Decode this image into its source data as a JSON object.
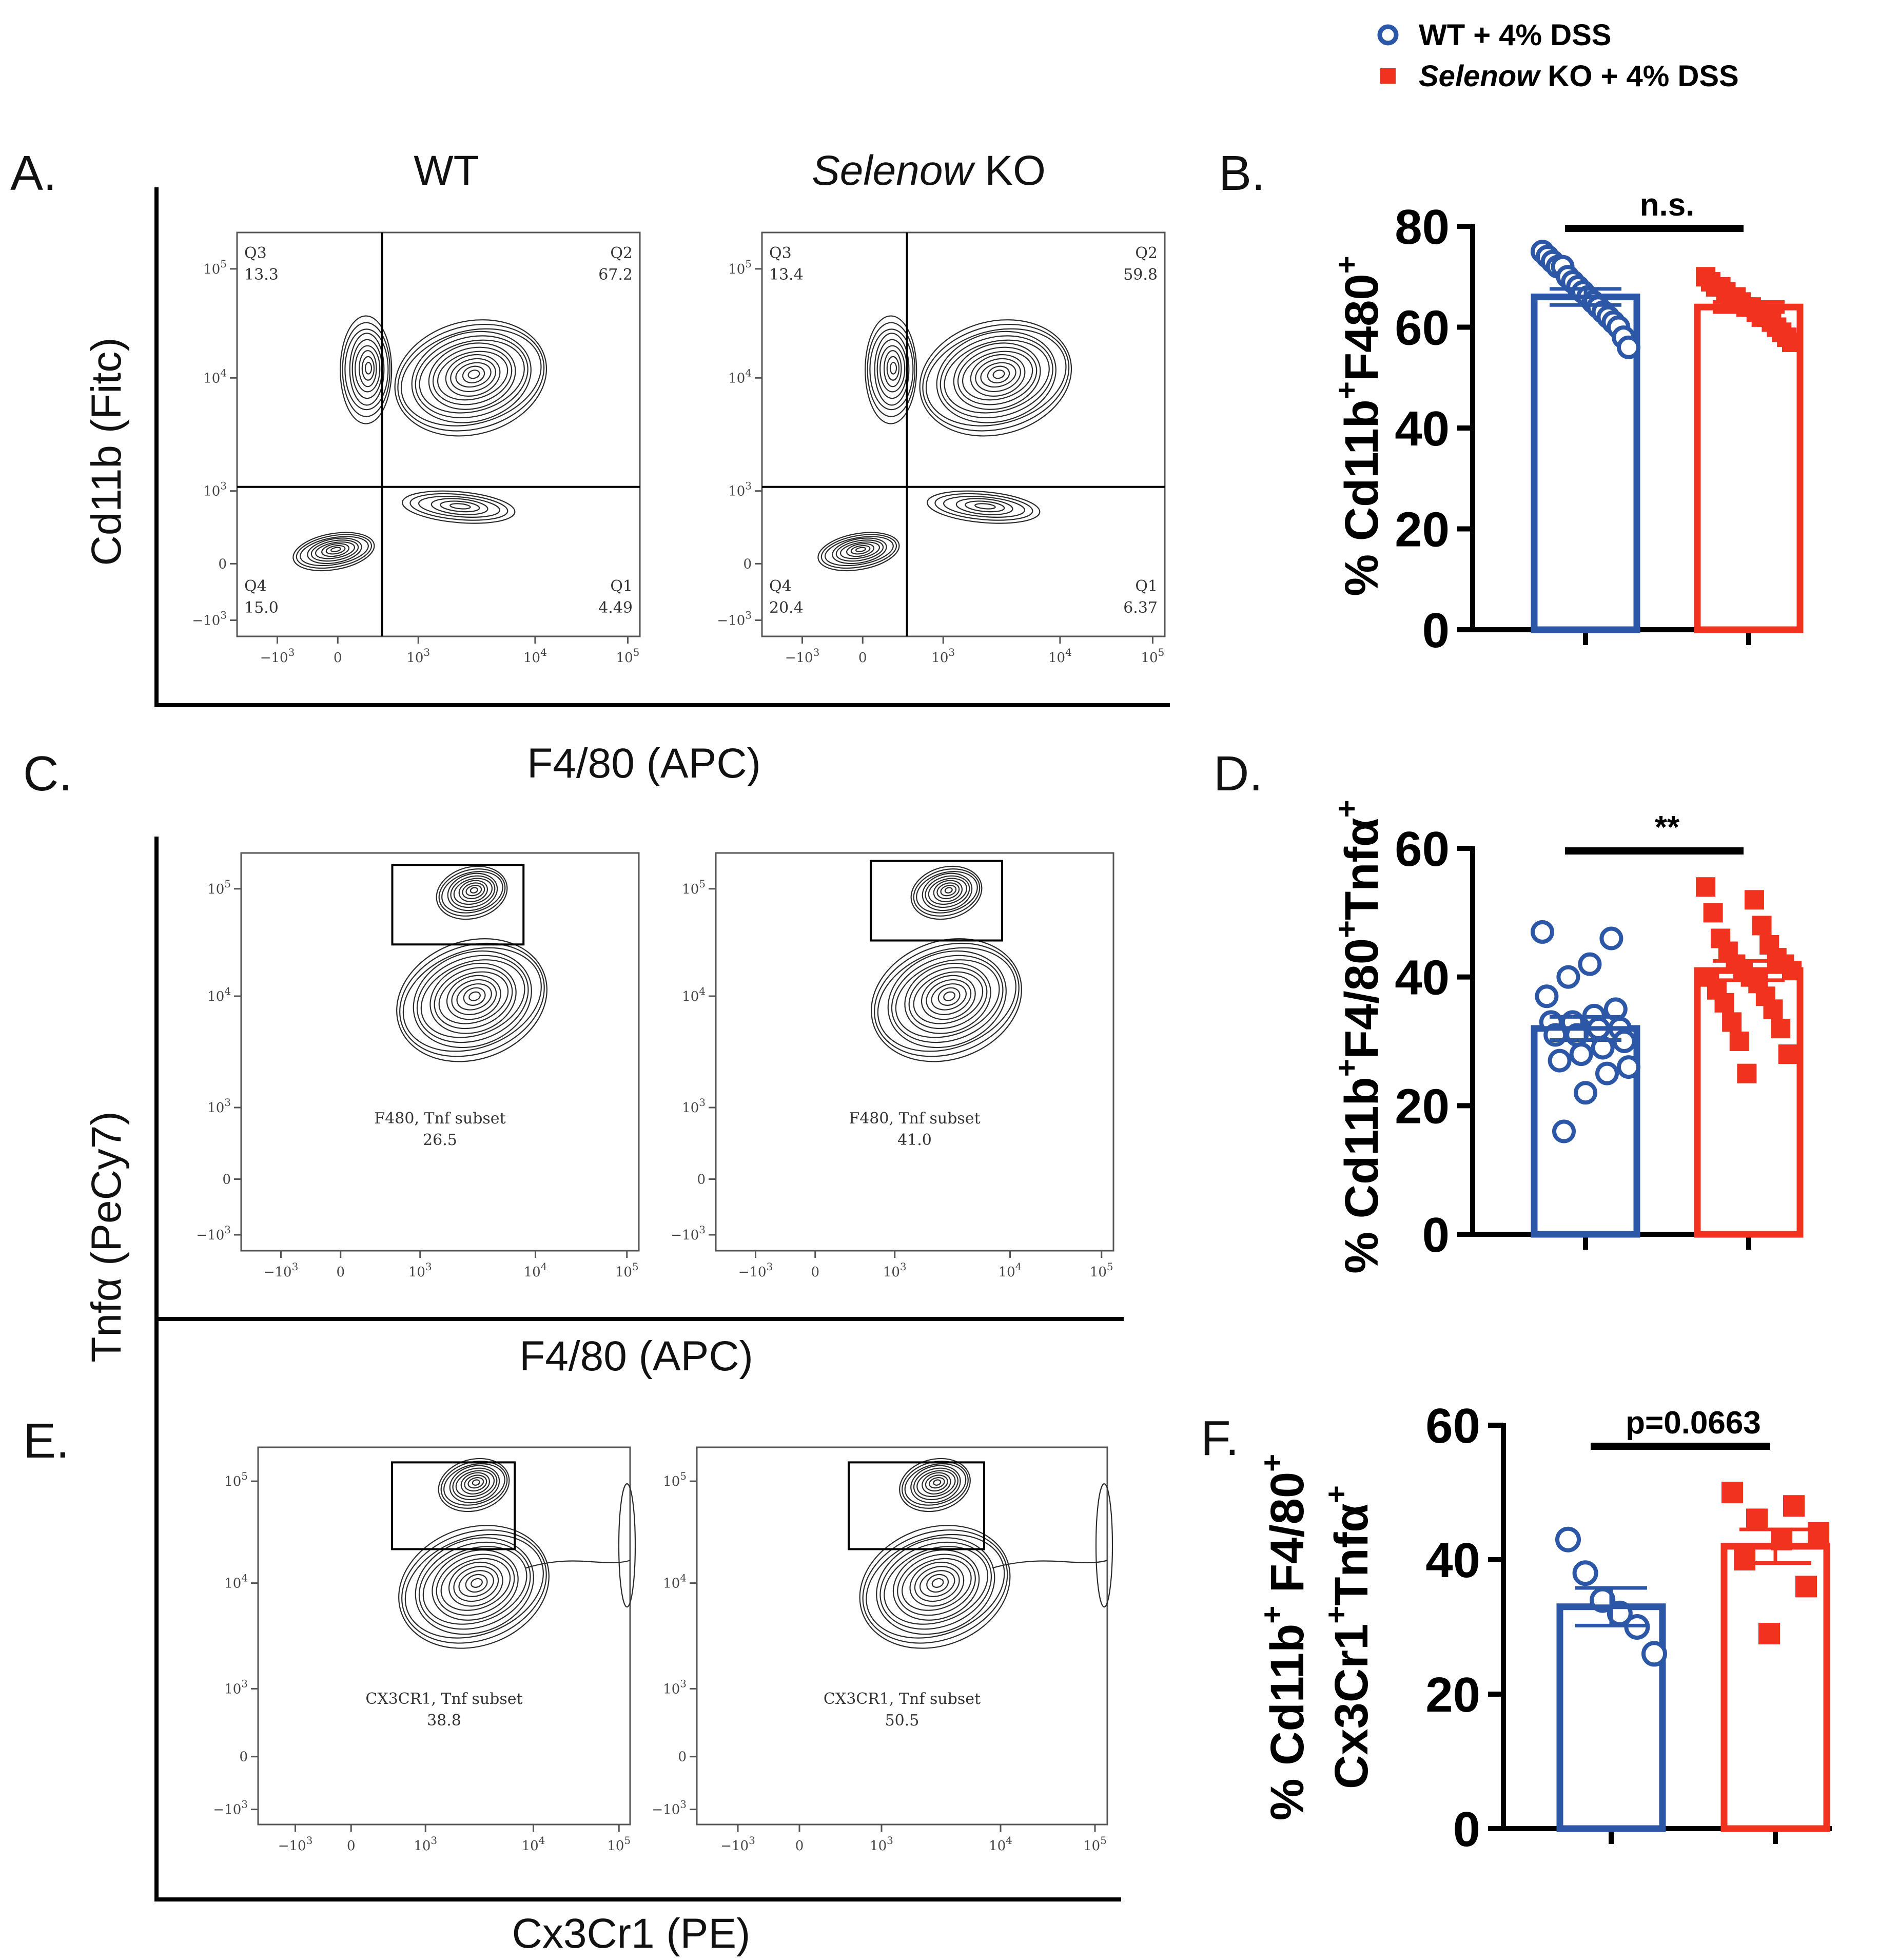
{
  "legend": {
    "wt_label": "WT + 4% DSS",
    "ko_italic": "Selenow",
    "ko_rest": " KO + 4% DSS",
    "wt_color": "#2C56A6",
    "ko_color": "#F0321F"
  },
  "flow": {
    "panel_a_label": "A.",
    "panel_c_label": "C.",
    "panel_e_label": "E.",
    "col_wt": "WT",
    "col_ko_italic": "Selenow",
    "col_ko_rest": " KO",
    "a_ylabel": "Cd11b (Fitc)",
    "a_xlabel": "F4/80 (APC)",
    "ce_ylabel": "Tnfα (PeCy7)",
    "c_xlabel": "F4/80 (APC)",
    "e_xlabel": "Cx3Cr1 (PE)",
    "tick_neg": "−10",
    "tick_zero": "0",
    "tick_base": "10",
    "exp_3": "3",
    "exp_4": "4",
    "exp_5": "5",
    "a_wt": {
      "q3": "Q3",
      "q3v": "13.3",
      "q2": "Q2",
      "q2v": "67.2",
      "q4": "Q4",
      "q4v": "15.0",
      "q1": "Q1",
      "q1v": "4.49"
    },
    "a_ko": {
      "q3": "Q3",
      "q3v": "13.4",
      "q2": "Q2",
      "q2v": "59.8",
      "q4": "Q4",
      "q4v": "20.4",
      "q1": "Q1",
      "q1v": "6.37"
    },
    "c_wt": {
      "name": "F480, Tnf subset",
      "value": "26.5"
    },
    "c_ko": {
      "name": "F480, Tnf subset",
      "value": "41.0"
    },
    "e_wt": {
      "name": "CX3CR1, Tnf subset",
      "value": "38.8"
    },
    "e_ko": {
      "name": "CX3CR1, Tnf subset",
      "value": "50.5"
    }
  },
  "chart_data": [
    {
      "panel": "B.",
      "type": "bar",
      "ylabel_main": "% Cd11b",
      "ylabel_sup1": "+",
      "ylabel_mid": "F480",
      "ylabel_sup2": "+",
      "ylim": [
        0,
        80
      ],
      "yticks": [
        "0",
        "20",
        "40",
        "60",
        "80"
      ],
      "significance": "n.s.",
      "series": [
        {
          "name": "WT + 4% DSS",
          "mean": 66,
          "sem": 1.6,
          "points": [
            75,
            74,
            73,
            72,
            72,
            70,
            69,
            68,
            67,
            66,
            65,
            64,
            63,
            62,
            61,
            60,
            58,
            56
          ]
        },
        {
          "name": "Selenow KO + 4% DSS",
          "mean": 64,
          "sem": 1.0,
          "points": [
            70,
            69,
            68,
            68,
            67,
            66,
            66,
            65,
            64,
            64,
            63,
            62,
            62,
            61,
            60,
            59,
            58,
            57
          ]
        }
      ]
    },
    {
      "panel": "D.",
      "type": "bar",
      "ylabel_main": "% Cd11b",
      "ylabel_sup1": "+",
      "ylabel_mid": "F4/80",
      "ylabel_sup2": "+",
      "ylabel_end": "Tnfα",
      "ylabel_sup3": "+",
      "ylim": [
        0,
        60
      ],
      "yticks": [
        "0",
        "20",
        "40",
        "60"
      ],
      "significance": "**",
      "series": [
        {
          "name": "WT + 4% DSS",
          "mean": 32,
          "sem": 1.8,
          "points": [
            47,
            46,
            42,
            40,
            37,
            35,
            34,
            33,
            33,
            32,
            32,
            31,
            31,
            30,
            29,
            28,
            27,
            26,
            25,
            22,
            16
          ]
        },
        {
          "name": "Selenow KO + 4% DSS",
          "mean": 41,
          "sem": 1.5,
          "points": [
            54,
            52,
            50,
            48,
            46,
            45,
            44,
            43,
            42,
            42,
            41,
            41,
            40,
            40,
            39,
            38,
            37,
            36,
            35,
            33,
            32,
            30,
            28,
            25
          ]
        }
      ]
    },
    {
      "panel": "F.",
      "type": "bar",
      "ylabel_line1_main": "% Cd11b",
      "ylabel_line1_sup1": "+",
      "ylabel_line1_mid": " F4/80",
      "ylabel_line1_sup2": "+",
      "ylabel_line2_main": "Cx3Cr1",
      "ylabel_line2_sup1": "+",
      "ylabel_line2_mid": "Tnfα",
      "ylabel_line2_sup2": "+",
      "ylim": [
        0,
        60
      ],
      "yticks": [
        "0",
        "20",
        "40",
        "60"
      ],
      "significance": "p=0.0663",
      "series": [
        {
          "name": "WT + 4% DSS",
          "mean": 33,
          "sem": 2.8,
          "points": [
            43,
            38,
            34,
            32,
            30,
            26
          ]
        },
        {
          "name": "Selenow KO + 4% DSS",
          "mean": 42,
          "sem": 2.5,
          "points": [
            50,
            48,
            46,
            44,
            43,
            40,
            36,
            29
          ]
        }
      ]
    }
  ]
}
